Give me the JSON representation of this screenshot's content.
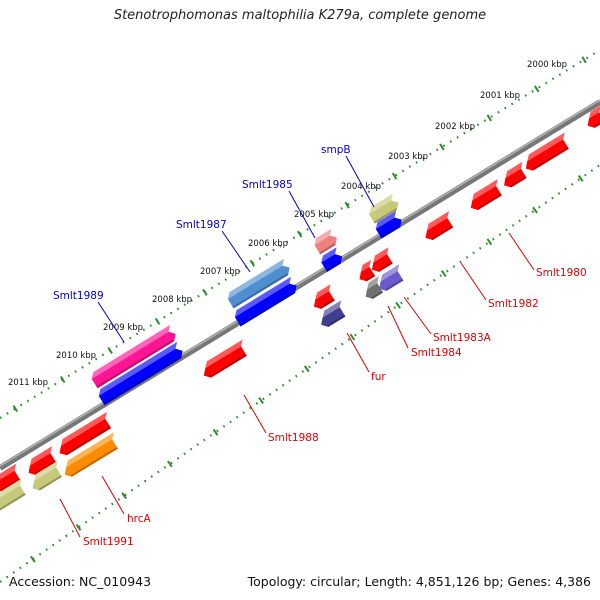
{
  "title": "Stenotrophomonas maltophilia K279a, complete genome",
  "accession": "Accession: NC_010943",
  "summary": "Topology: circular; Length: 4,851,126 bp; Genes: 4,386",
  "colors": {
    "backbone": "#777777",
    "tick_line": "#2e8b2e",
    "forward_label": "#0000cc",
    "reverse_label": "#dd0000"
  },
  "scale": {
    "kbp_labels": [
      "2000 kbp",
      "2001 kbp",
      "2002 kbp",
      "2003 kbp",
      "2004 kbp",
      "2005 kbp",
      "2006 kbp",
      "2007 kbp",
      "2008 kbp",
      "2009 kbp",
      "2010 kbp",
      "2011 kbp"
    ]
  },
  "labeled_genes": [
    {
      "label": "smpB",
      "strand": "forward",
      "color": "#c8c87a"
    },
    {
      "label": "Smlt1985",
      "strand": "forward",
      "color": "#f08080"
    },
    {
      "label": "Smlt1987",
      "strand": "forward",
      "color": "#4f8fcf"
    },
    {
      "label": "Smlt1989",
      "strand": "forward",
      "color": "#ff1493"
    },
    {
      "label": "Smlt1980",
      "strand": "reverse",
      "color": "#ff0000"
    },
    {
      "label": "Smlt1982",
      "strand": "reverse",
      "color": "#ff0000"
    },
    {
      "label": "Smlt1983A",
      "strand": "reverse",
      "color": "#6a5acd"
    },
    {
      "label": "Smlt1984",
      "strand": "reverse",
      "color": "#707070"
    },
    {
      "label": "fur",
      "strand": "reverse",
      "color": "#3f3f8f"
    },
    {
      "label": "Smlt1988",
      "strand": "reverse",
      "color": "#ff0000"
    },
    {
      "label": "hrcA",
      "strand": "reverse",
      "color": "#ff8c00"
    },
    {
      "label": "Smlt1991",
      "strand": "reverse",
      "color": "#c8c87a"
    }
  ]
}
